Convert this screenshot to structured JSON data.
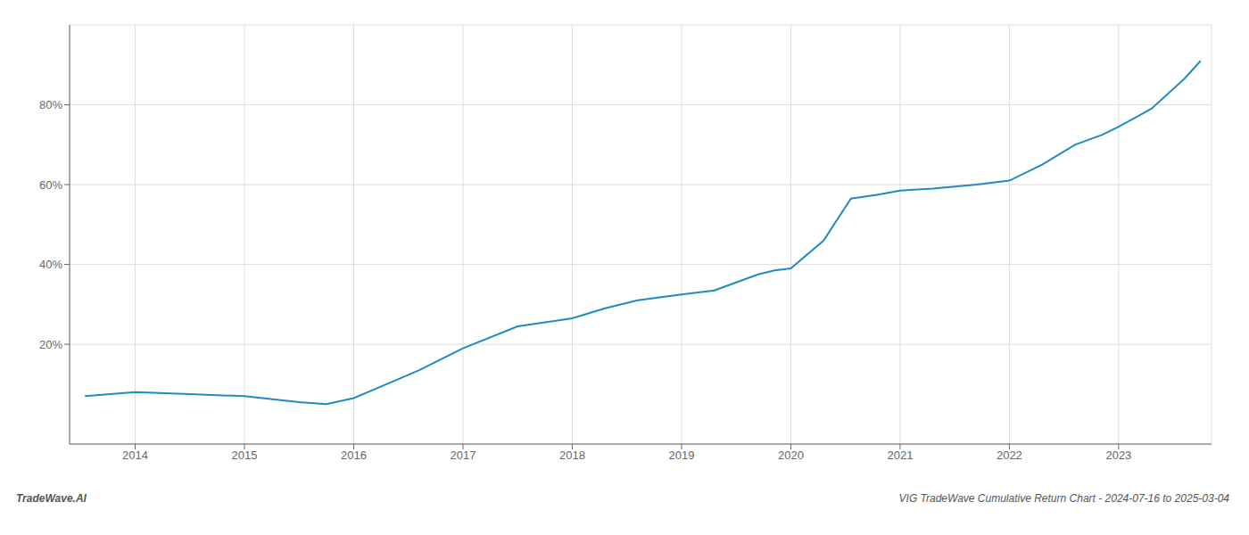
{
  "chart_data": {
    "type": "line",
    "annotations": [
      "TradeWave.AI",
      "VIG TradeWave Cumulative Return Chart - 2024-07-16 to 2025-03-04"
    ],
    "x": [
      2013.54,
      2014.0,
      2014.5,
      2015.0,
      2015.5,
      2015.75,
      2016.0,
      2016.3,
      2016.6,
      2017.0,
      2017.5,
      2018.0,
      2018.3,
      2018.6,
      2019.0,
      2019.3,
      2019.5,
      2019.7,
      2019.85,
      2020.0,
      2020.3,
      2020.55,
      2020.8,
      2021.0,
      2021.3,
      2021.5,
      2021.7,
      2022.0,
      2022.3,
      2022.6,
      2022.85,
      2023.0,
      2023.3,
      2023.6,
      2023.75
    ],
    "values": [
      7.0,
      8.0,
      7.5,
      7.0,
      5.5,
      5.0,
      6.5,
      10.0,
      13.5,
      19.0,
      24.5,
      26.5,
      29.0,
      31.0,
      32.5,
      33.5,
      35.5,
      37.5,
      38.5,
      39.0,
      46.0,
      56.5,
      57.5,
      58.5,
      59.0,
      59.5,
      60.0,
      61.0,
      65.0,
      70.0,
      72.5,
      74.5,
      79.0,
      86.5,
      91.0
    ],
    "color": "#1f8bc4",
    "xlim": [
      2013.4,
      2023.85
    ],
    "ylim": [
      -5,
      100
    ],
    "xticks": [
      2014,
      2015,
      2016,
      2017,
      2018,
      2019,
      2020,
      2021,
      2022,
      2023
    ],
    "yticks": [
      {
        "value": 20,
        "label": "20%"
      },
      {
        "value": 40,
        "label": "40%"
      },
      {
        "value": 60,
        "label": "60%"
      },
      {
        "value": 80,
        "label": "80%"
      }
    ],
    "grid": true
  }
}
